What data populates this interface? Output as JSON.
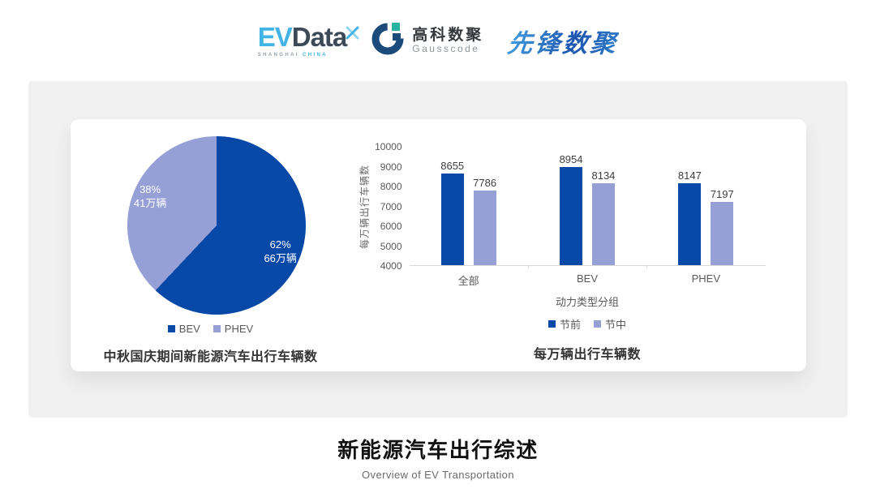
{
  "header": {
    "logos": {
      "evdata": {
        "text_ev": "EV",
        "text_data": "Data",
        "tagline_left": "SHANGHAI",
        "tagline_right": "CHINA"
      },
      "gausscode": {
        "cn": "高科数聚",
        "en": "Gausscode"
      },
      "xianfeng": {
        "text": "先锋数聚"
      }
    }
  },
  "colors": {
    "series_dark_blue": "#0849a8",
    "series_light_periwinkle": "#96a0d6",
    "panel_bg": "#f0f0f0",
    "evdata_blue": "#41b4e5",
    "gauss_navy": "#1b4b7a",
    "gauss_teal": "#28b2a2"
  },
  "chart_data": [
    {
      "type": "pie",
      "title": "中秋国庆期间新能源汽车出行车辆数",
      "legend": [
        "BEV",
        "PHEV"
      ],
      "legend_position": "bottom",
      "slices": [
        {
          "name": "BEV",
          "percent": 62,
          "pct_label": "62%",
          "amount": "66万辆",
          "color": "#0849a8"
        },
        {
          "name": "PHEV",
          "percent": 38,
          "pct_label": "38%",
          "amount": "41万辆",
          "color": "#96a0d6"
        }
      ],
      "start_angle": "top",
      "direction": "clockwise"
    },
    {
      "type": "bar",
      "title": "每万辆出行车辆数",
      "categories": [
        "全部",
        "BEV",
        "PHEV"
      ],
      "series": [
        {
          "name": "节前",
          "values": [
            8655,
            8954,
            8147
          ],
          "color": "#0849a8"
        },
        {
          "name": "节中",
          "values": [
            7786,
            8134,
            7197
          ],
          "color": "#96a0d6"
        }
      ],
      "xlabel": "动力类型分组",
      "ylabel": "每万辆出行车辆数",
      "ylim": [
        4000,
        10000
      ],
      "ytick_step": 1000,
      "grid": false,
      "legend_position": "bottom"
    }
  ],
  "footer": {
    "title": "新能源汽车出行综述",
    "subtitle": "Overview of EV Transportation"
  }
}
